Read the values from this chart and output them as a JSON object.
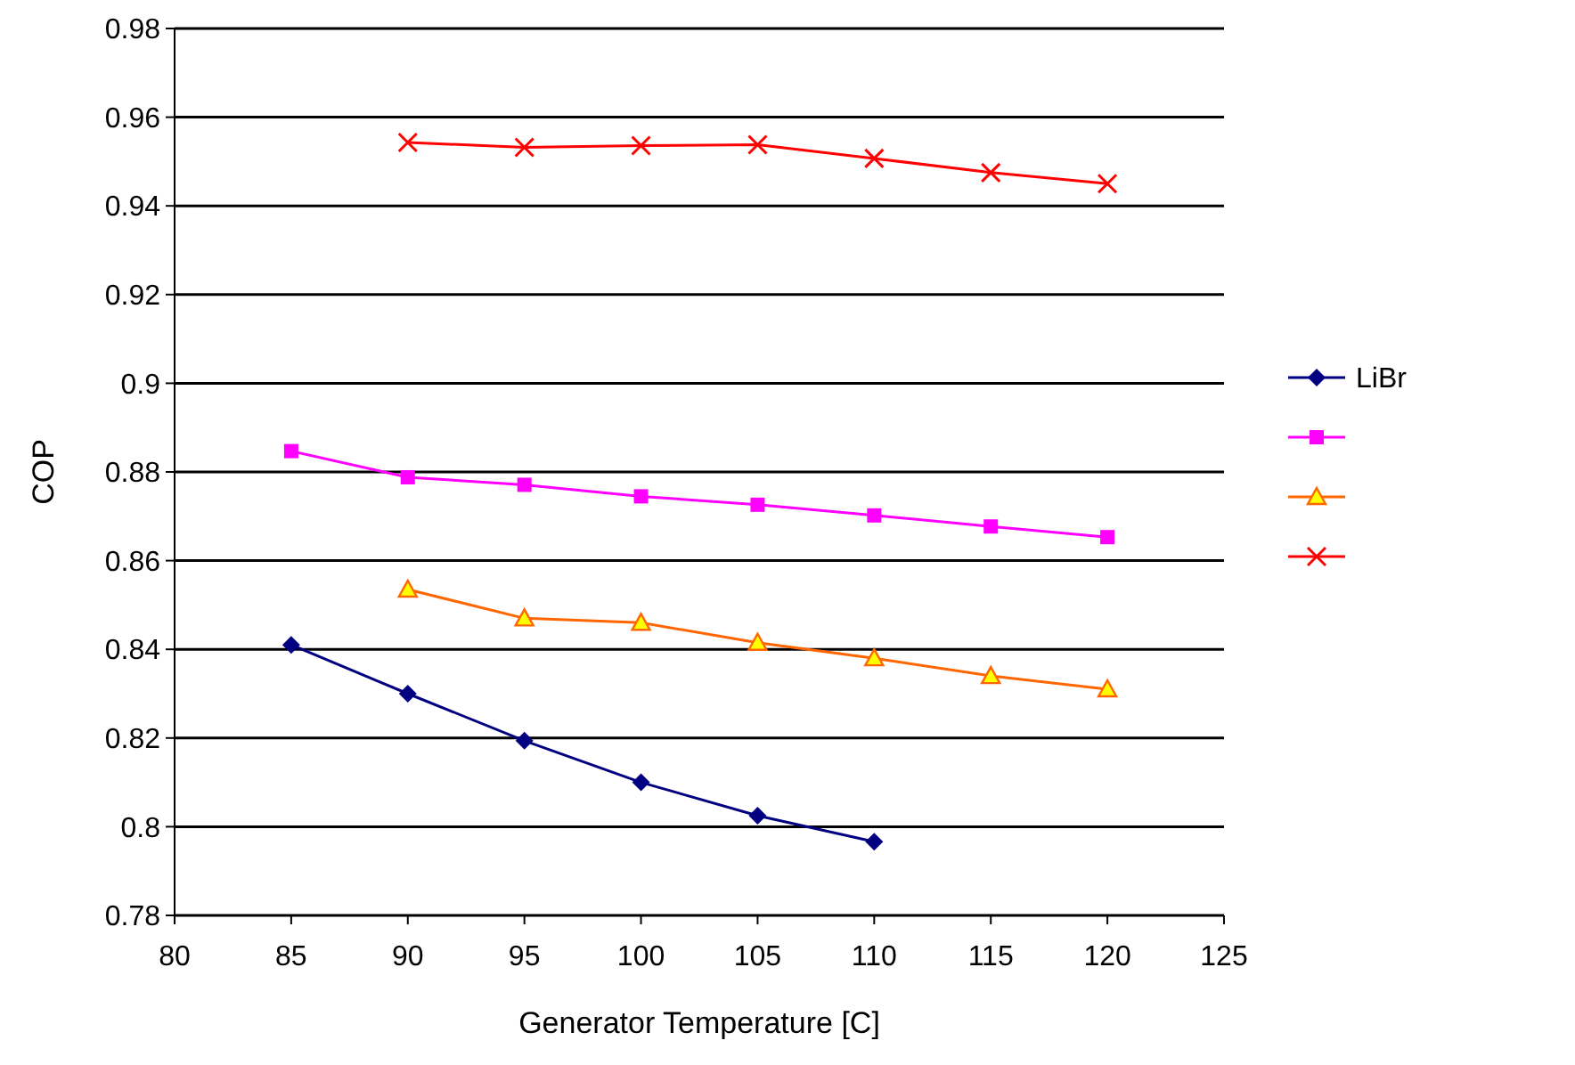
{
  "chart_data": {
    "type": "line",
    "xlabel": "Generator Temperature [C]",
    "ylabel": "COP",
    "xlim": [
      80,
      125
    ],
    "xticks": [
      80,
      85,
      90,
      95,
      100,
      105,
      110,
      115,
      120,
      125
    ],
    "ylim": [
      0.78,
      0.98
    ],
    "yticks": [
      0.78,
      0.8,
      0.82,
      0.84,
      0.86,
      0.88,
      0.9,
      0.92,
      0.94,
      0.96,
      0.98
    ],
    "grid": "y",
    "legend": "right",
    "series": [
      {
        "name": "LiBr",
        "color": "#000080",
        "marker": "diamond",
        "x": [
          85,
          90,
          95,
          100,
          105,
          110
        ],
        "values": [
          0.841,
          0.83,
          0.8194,
          0.81,
          0.8025,
          0.7966
        ]
      },
      {
        "color": "#ff00ff",
        "marker": "square",
        "x": [
          85,
          90,
          95,
          100,
          105,
          110,
          115,
          120
        ],
        "values": [
          0.8847,
          0.8788,
          0.8771,
          0.8745,
          0.8726,
          0.8702,
          0.8677,
          0.8653
        ]
      },
      {
        "color": "#ff6600",
        "marker": "triangle",
        "x": [
          90,
          95,
          100,
          105,
          110,
          115,
          120
        ],
        "values": [
          0.8535,
          0.847,
          0.846,
          0.8415,
          0.838,
          0.834,
          0.831
        ]
      },
      {
        "color": "#ff0000",
        "marker": "cross",
        "x": [
          90,
          95,
          100,
          105,
          110,
          115,
          120
        ],
        "values": [
          0.9543,
          0.9532,
          0.9536,
          0.9538,
          0.9507,
          0.9475,
          0.945
        ]
      }
    ]
  }
}
